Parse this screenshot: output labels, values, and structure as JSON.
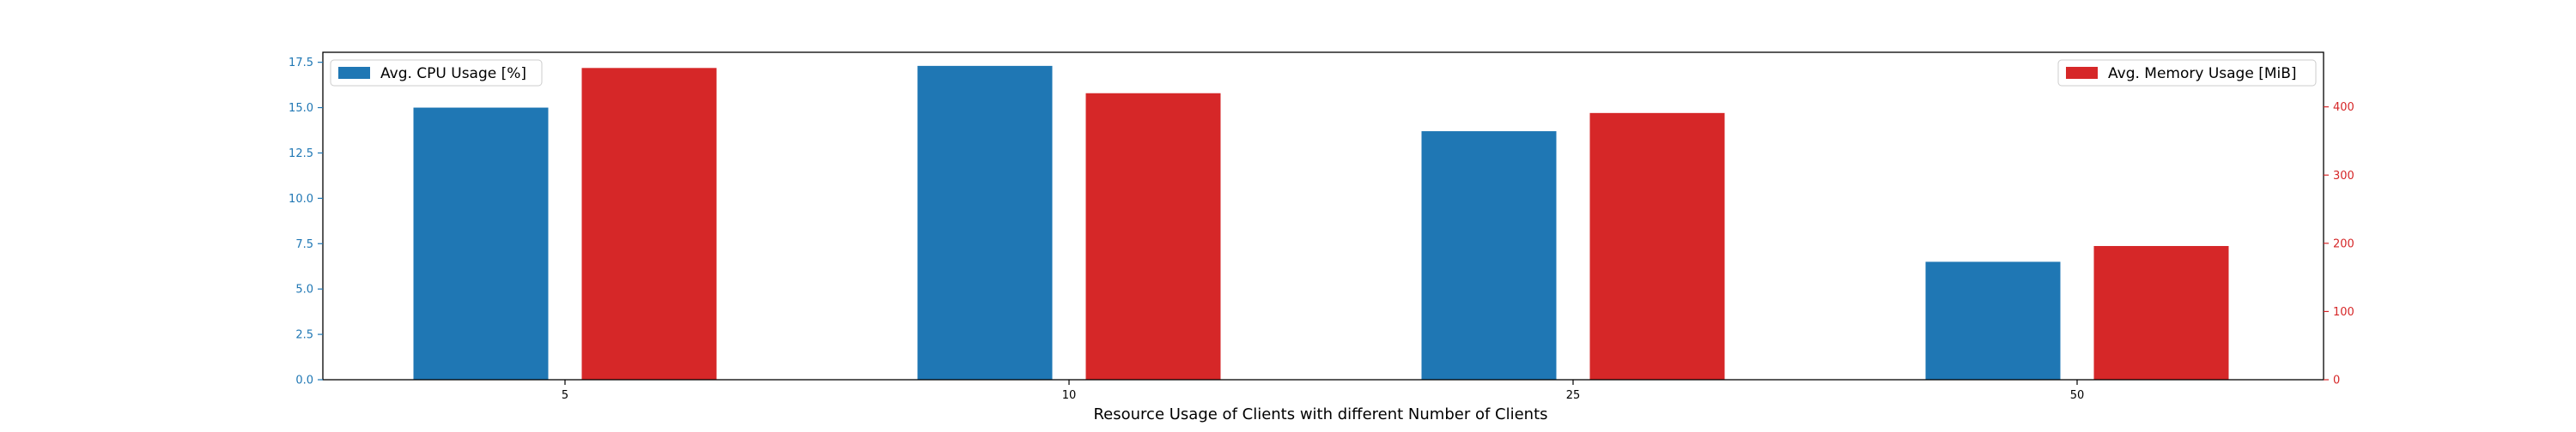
{
  "chart_data": {
    "type": "bar",
    "categories": [
      "5",
      "10",
      "25",
      "50"
    ],
    "xlabel": "Resource Usage of Clients with different Number of Clients",
    "series": [
      {
        "name": "Avg. CPU Usage [%]",
        "axis": "left",
        "color": "#1f77b4",
        "values": [
          15.0,
          17.3,
          13.7,
          6.5
        ]
      },
      {
        "name": "Avg. Memory Usage [MiB]",
        "axis": "right",
        "color": "#d62728",
        "values": [
          457,
          420,
          391,
          196
        ]
      }
    ],
    "y_left": {
      "range": [
        0,
        18.05
      ],
      "ticks": [
        "0.0",
        "2.5",
        "5.0",
        "7.5",
        "10.0",
        "12.5",
        "15.0",
        "17.5"
      ],
      "tick_values": [
        0,
        2.5,
        5.0,
        7.5,
        10.0,
        12.5,
        15.0,
        17.5
      ],
      "color": "#1f77b4"
    },
    "y_right": {
      "range": [
        0,
        480
      ],
      "ticks": [
        "0",
        "100",
        "200",
        "300",
        "400"
      ],
      "tick_values": [
        0,
        100,
        200,
        300,
        400
      ],
      "color": "#d62728"
    },
    "legend_left_placement": "top-left",
    "legend_right_placement": "top-right",
    "grid": false
  }
}
